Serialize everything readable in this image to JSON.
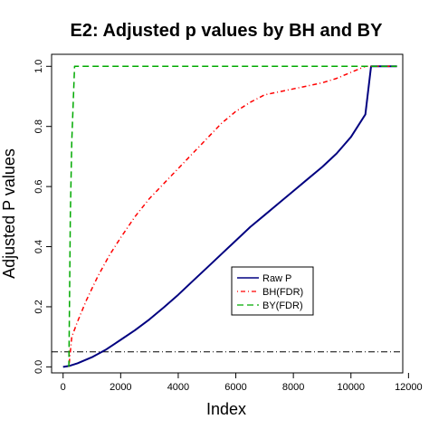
{
  "chart_data": {
    "type": "line",
    "title": "E2: Adjusted p values by BH and BY",
    "xlabel": "Index",
    "ylabel": "Adjusted P values",
    "xlim": [
      -400,
      11800
    ],
    "ylim": [
      -0.02,
      1.04
    ],
    "x_ticks": [
      0,
      2000,
      4000,
      6000,
      8000,
      10000,
      12000
    ],
    "y_ticks": [
      0.0,
      0.2,
      0.4,
      0.6,
      0.8,
      1.0
    ],
    "x_tick_labels": [
      "0",
      "2000",
      "4000",
      "6000",
      "8000",
      "10000",
      "12000"
    ],
    "y_tick_labels": [
      "0.0",
      "0.2",
      "0.4",
      "0.6",
      "0.8",
      "1.0"
    ],
    "legend_position": "center-right",
    "reference_line": {
      "y": 0.05,
      "style": "dash-dot",
      "color": "#000000"
    },
    "series": [
      {
        "name": "Raw P",
        "color": "#000080",
        "style": "solid",
        "x": [
          0,
          200,
          500,
          1000,
          1500,
          2000,
          2500,
          3000,
          3500,
          4000,
          4500,
          5000,
          5500,
          6000,
          6500,
          7000,
          7500,
          8000,
          8500,
          9000,
          9500,
          10000,
          10500,
          10700,
          11600
        ],
        "y": [
          0.0,
          0.003,
          0.012,
          0.032,
          0.058,
          0.09,
          0.122,
          0.158,
          0.198,
          0.24,
          0.285,
          0.33,
          0.375,
          0.42,
          0.465,
          0.505,
          0.545,
          0.585,
          0.625,
          0.665,
          0.71,
          0.765,
          0.84,
          1.0,
          1.0
        ]
      },
      {
        "name": "BH(FDR)",
        "color": "#ff0000",
        "style": "dot-dash",
        "x": [
          200,
          250,
          300,
          500,
          800,
          1200,
          1600,
          2000,
          2500,
          3000,
          3500,
          4000,
          4500,
          5000,
          5500,
          6000,
          6500,
          7000,
          7500,
          8000,
          8500,
          9000,
          9500,
          10000,
          10500,
          11000,
          11600
        ],
        "y": [
          0.0,
          0.05,
          0.1,
          0.15,
          0.22,
          0.3,
          0.37,
          0.43,
          0.5,
          0.56,
          0.61,
          0.66,
          0.71,
          0.76,
          0.81,
          0.85,
          0.88,
          0.905,
          0.915,
          0.925,
          0.935,
          0.945,
          0.96,
          0.98,
          1.0,
          1.0,
          1.0
        ]
      },
      {
        "name": "BY(FDR)",
        "color": "#00aa00",
        "style": "dashed",
        "x": [
          200,
          250,
          300,
          400,
          11600
        ],
        "y": [
          0.0,
          0.5,
          0.75,
          1.0,
          1.0
        ]
      }
    ]
  }
}
